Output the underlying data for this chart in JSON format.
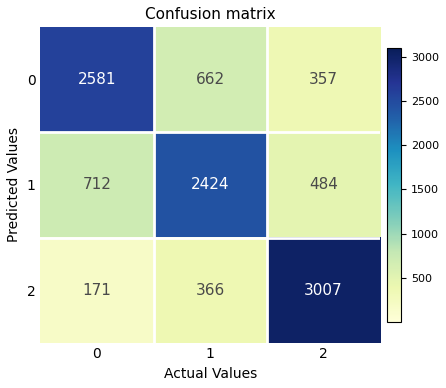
{
  "title": "Confusion matrix",
  "matrix": [
    [
      2581,
      662,
      357
    ],
    [
      712,
      2424,
      484
    ],
    [
      171,
      366,
      3007
    ]
  ],
  "x_labels": [
    "0",
    "1",
    "2"
  ],
  "y_labels": [
    "0",
    "1",
    "2"
  ],
  "xlabel": "Actual Values",
  "ylabel": "Predicted Values",
  "cmap": "YlGnBu",
  "vmin": 0,
  "vmax": 3100,
  "colorbar_ticks": [
    500,
    1000,
    1500,
    2000,
    2500,
    3000
  ],
  "text_color_threshold": 1600,
  "white_text_color": "#ffffff",
  "dark_text_color": "#4a4a4a",
  "fontsize_values": 11,
  "fontsize_labels": 10,
  "fontsize_title": 11,
  "figwidth": 4.46,
  "figheight": 3.88,
  "dpi": 100
}
